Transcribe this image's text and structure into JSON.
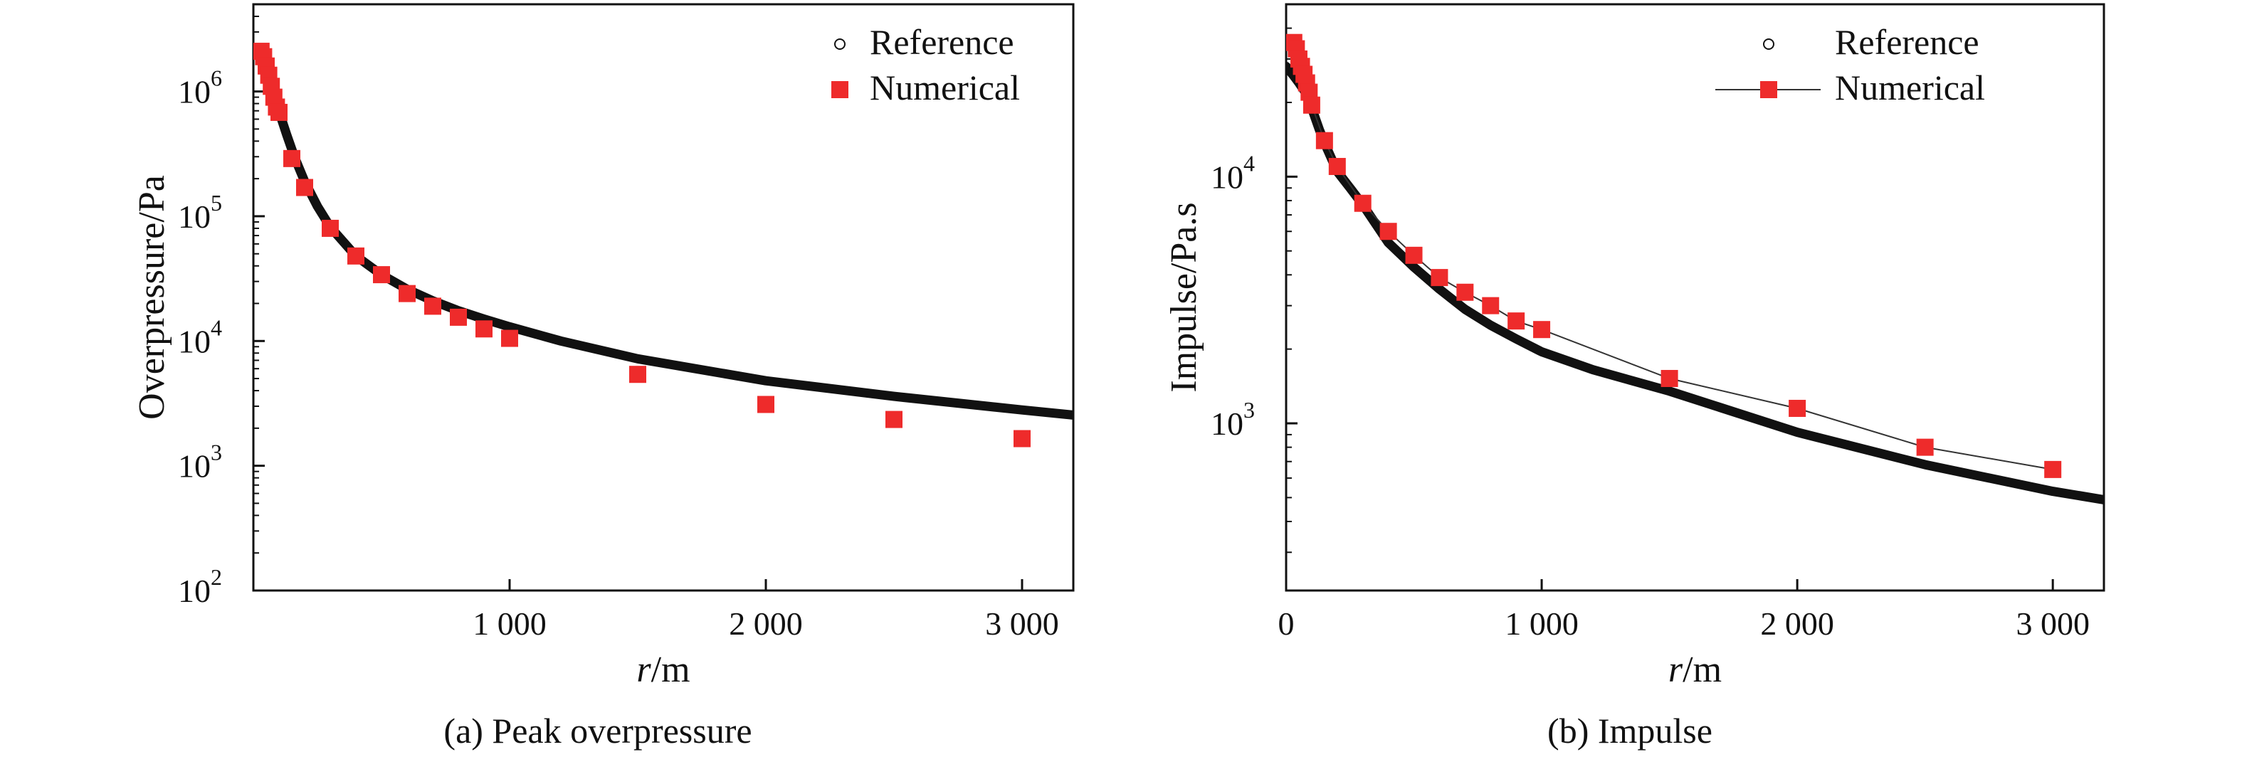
{
  "chart_data": [
    {
      "type": "scatter",
      "panel": "a",
      "caption": "(a) Peak overpressure",
      "xlabel_italic": "r",
      "xlabel_unit": "/m",
      "ylabel": "Overpressure/Pa",
      "yscale": "log",
      "xlim": [
        0,
        3200
      ],
      "ylim": [
        100,
        5000000
      ],
      "xticks": [
        1000,
        2000,
        3000
      ],
      "xtick_labels": [
        "1 000",
        "2 000",
        "3 000"
      ],
      "yticks": [
        100,
        1000,
        10000,
        100000,
        1000000
      ],
      "ytick_base": "10",
      "ytick_exponents": [
        "2",
        "3",
        "4",
        "5",
        "6"
      ],
      "legend_position": "top-right",
      "series": [
        {
          "name": "Reference",
          "style": "thick-line",
          "color": "#111111",
          "x": [
            30,
            50,
            70,
            90,
            110,
            130,
            160,
            200,
            250,
            300,
            400,
            500,
            600,
            700,
            800,
            900,
            1000,
            1200,
            1500,
            2000,
            2500,
            3000,
            3200
          ],
          "y": [
            2000000,
            1500000,
            1100000,
            800000,
            600000,
            450000,
            300000,
            190000,
            120000,
            82000,
            48000,
            34000,
            26000,
            21000,
            17500,
            15000,
            13000,
            10000,
            7200,
            4800,
            3600,
            2800,
            2550
          ]
        },
        {
          "name": "Numerical",
          "style": "square-markers",
          "color": "#ee2b2b",
          "x": [
            30,
            40,
            50,
            60,
            70,
            80,
            90,
            100,
            150,
            200,
            300,
            400,
            500,
            600,
            700,
            800,
            900,
            1000,
            1500,
            2000,
            2500,
            3000
          ],
          "y": [
            2100000,
            1900000,
            1600000,
            1350000,
            1100000,
            900000,
            750000,
            680000,
            290000,
            170000,
            80000,
            48000,
            34000,
            24000,
            19000,
            15500,
            12500,
            10500,
            5400,
            3100,
            2350,
            1650
          ]
        }
      ]
    },
    {
      "type": "line",
      "panel": "b",
      "caption": "(b) Impulse",
      "xlabel_italic": "r",
      "xlabel_unit": "/m",
      "ylabel": "Impulse/Pa.s",
      "yscale": "log",
      "xlim": [
        0,
        3200
      ],
      "ylim": [
        210,
        50000
      ],
      "xticks": [
        0,
        1000,
        2000,
        3000
      ],
      "xtick_labels": [
        "0",
        "1 000",
        "2 000",
        "3 000"
      ],
      "yticks": [
        1000,
        10000
      ],
      "ytick_base": "10",
      "ytick_exponents": [
        "3",
        "4"
      ],
      "legend_position": "top-right",
      "series": [
        {
          "name": "Reference",
          "style": "thick-line",
          "color": "#111111",
          "x": [
            0,
            25,
            50,
            75,
            100,
            130,
            160,
            200,
            250,
            300,
            400,
            500,
            600,
            700,
            800,
            900,
            1000,
            1200,
            1500,
            2000,
            2500,
            3000,
            3200
          ],
          "y": [
            28000,
            26000,
            24000,
            22000,
            19000,
            15500,
            13000,
            10500,
            9000,
            7700,
            5400,
            4300,
            3500,
            2900,
            2500,
            2200,
            1950,
            1650,
            1350,
            920,
            680,
            530,
            490
          ]
        },
        {
          "name": "Numerical",
          "style": "square-markers-thin-line",
          "color": "#ee2b2b",
          "line_color": "#333333",
          "x": [
            30,
            40,
            50,
            60,
            70,
            80,
            90,
            100,
            150,
            200,
            300,
            400,
            500,
            600,
            700,
            800,
            900,
            1000,
            1500,
            2000,
            2500,
            3000
          ],
          "y": [
            35000,
            33000,
            30000,
            28000,
            26000,
            24000,
            22000,
            19500,
            14000,
            11000,
            7800,
            6000,
            4800,
            3900,
            3400,
            3000,
            2600,
            2400,
            1520,
            1150,
            800,
            650
          ]
        }
      ]
    }
  ]
}
